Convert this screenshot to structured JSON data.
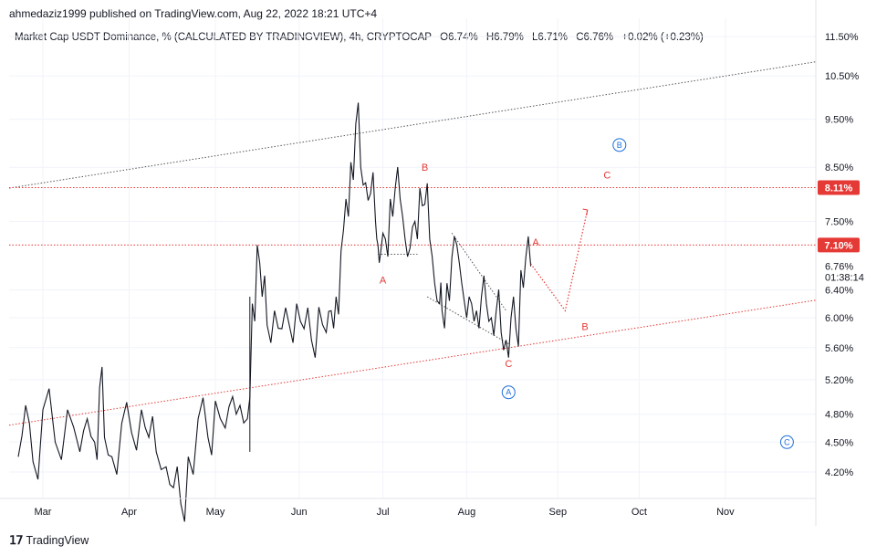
{
  "header": {
    "publisher": "ahmedaziz1999 published on TradingView.com, Aug 22, 2022 18:21 UTC+4"
  },
  "legend": {
    "symbol": "Market Cap USDT Dominance, % (CALCULATED BY TRADINGVIEW), 4h, CRYPTOCAP",
    "open": "O6.74%",
    "high": "H6.79%",
    "low": "L6.71%",
    "close": "C6.76%",
    "change": "+0.02% (+0.23%)"
  },
  "footer": {
    "brand": "TradingView",
    "logo_icon": "tradingview-logo-icon"
  },
  "colors": {
    "price": "#131722",
    "red": "#e53935",
    "blue": "#1e6fd9",
    "grid": "#f0f3fa",
    "trend": "#555555"
  },
  "chart_data": {
    "type": "line",
    "xlabels": [
      "Mar",
      "Apr",
      "May",
      "Jun",
      "Jul",
      "Aug",
      "Sep",
      "Oct",
      "Nov"
    ],
    "ytick_labels": [
      "11.50%",
      "10.50%",
      "9.50%",
      "8.50%",
      "7.50%",
      "6.76%",
      "6.40%",
      "6.00%",
      "5.60%",
      "5.20%",
      "4.80%",
      "4.50%",
      "4.20%"
    ],
    "ytick_values": [
      11.5,
      10.5,
      9.5,
      8.5,
      7.5,
      6.76,
      6.4,
      6.0,
      5.6,
      5.2,
      4.8,
      4.5,
      4.2
    ],
    "ylim": [
      3.95,
      12.0
    ],
    "scale": "log",
    "price_label": "6.76%",
    "countdown": "01:38:14",
    "horizontal_levels": [
      {
        "value": 8.11,
        "label": "8.11%"
      },
      {
        "value": 7.1,
        "label": "7.10%"
      }
    ],
    "series": [
      {
        "values": [
          [
            0,
            4.35
          ],
          [
            3,
            4.9
          ],
          [
            6,
            4.3
          ],
          [
            10,
            4.85
          ],
          [
            15,
            4.5
          ],
          [
            20,
            4.85
          ],
          [
            25,
            4.4
          ],
          [
            28,
            4.75
          ],
          [
            31,
            4.5
          ],
          [
            33,
            5.1
          ],
          [
            35,
            4.55
          ],
          [
            38,
            4.35
          ],
          [
            42,
            4.7
          ],
          [
            46,
            4.6
          ],
          [
            50,
            4.85
          ],
          [
            53,
            4.55
          ],
          [
            56,
            4.4
          ],
          [
            60,
            4.25
          ],
          [
            63,
            4.05
          ],
          [
            66,
            3.9
          ],
          [
            69,
            4.35
          ],
          [
            73,
            4.75
          ],
          [
            77,
            4.55
          ],
          [
            80,
            4.95
          ],
          [
            84,
            4.65
          ],
          [
            87,
            5.0
          ],
          [
            90,
            4.9
          ],
          [
            93,
            4.75
          ],
          [
            95,
            6.2
          ],
          [
            97,
            7.1
          ],
          [
            99,
            6.3
          ],
          [
            101,
            5.9
          ],
          [
            104,
            6.1
          ],
          [
            107,
            5.85
          ],
          [
            110,
            5.9
          ],
          [
            113,
            6.2
          ],
          [
            116,
            5.85
          ],
          [
            119,
            5.7
          ],
          [
            122,
            6.15
          ],
          [
            125,
            5.8
          ],
          [
            127,
            6.1
          ],
          [
            129,
            6.3
          ],
          [
            131,
            7.0
          ],
          [
            133,
            7.9
          ],
          [
            135,
            8.6
          ],
          [
            137,
            9.4
          ],
          [
            139,
            8.5
          ],
          [
            141,
            8.2
          ],
          [
            143,
            8.0
          ],
          [
            145,
            7.5
          ],
          [
            146,
            7.1
          ],
          [
            147,
            6.95
          ],
          [
            149,
            7.2
          ],
          [
            151,
            7.9
          ],
          [
            153,
            8.1
          ],
          [
            155,
            7.9
          ],
          [
            157,
            7.2
          ],
          [
            159,
            7.05
          ],
          [
            161,
            7.5
          ],
          [
            163,
            8.1
          ],
          [
            165,
            7.8
          ],
          [
            167,
            7.2
          ],
          [
            169,
            6.5
          ],
          [
            171,
            6.2
          ],
          [
            172,
            6.1
          ],
          [
            174,
            6.5
          ],
          [
            176,
            6.9
          ],
          [
            178,
            7.1
          ],
          [
            180,
            6.5
          ],
          [
            182,
            6.0
          ],
          [
            184,
            6.2
          ],
          [
            186,
            6.1
          ],
          [
            188,
            6.3
          ],
          [
            190,
            6.2
          ],
          [
            192,
            6.0
          ],
          [
            194,
            6.1
          ],
          [
            196,
            5.8
          ],
          [
            198,
            5.7
          ],
          [
            200,
            6.0
          ],
          [
            202,
            5.85
          ],
          [
            204,
            6.7
          ],
          [
            206,
            6.9
          ],
          [
            208,
            6.76
          ]
        ]
      }
    ],
    "annotations": [
      {
        "text": "A",
        "color": "red"
      },
      {
        "text": "B",
        "color": "red"
      },
      {
        "text": "C",
        "color": "red"
      },
      {
        "text": "A",
        "color": "red"
      },
      {
        "text": "B",
        "color": "red"
      },
      {
        "text": "C",
        "color": "red"
      },
      {
        "text": "A",
        "color": "blue",
        "circled": true
      },
      {
        "text": "B",
        "color": "blue",
        "circled": true
      },
      {
        "text": "C",
        "color": "blue",
        "circled": true
      }
    ]
  }
}
